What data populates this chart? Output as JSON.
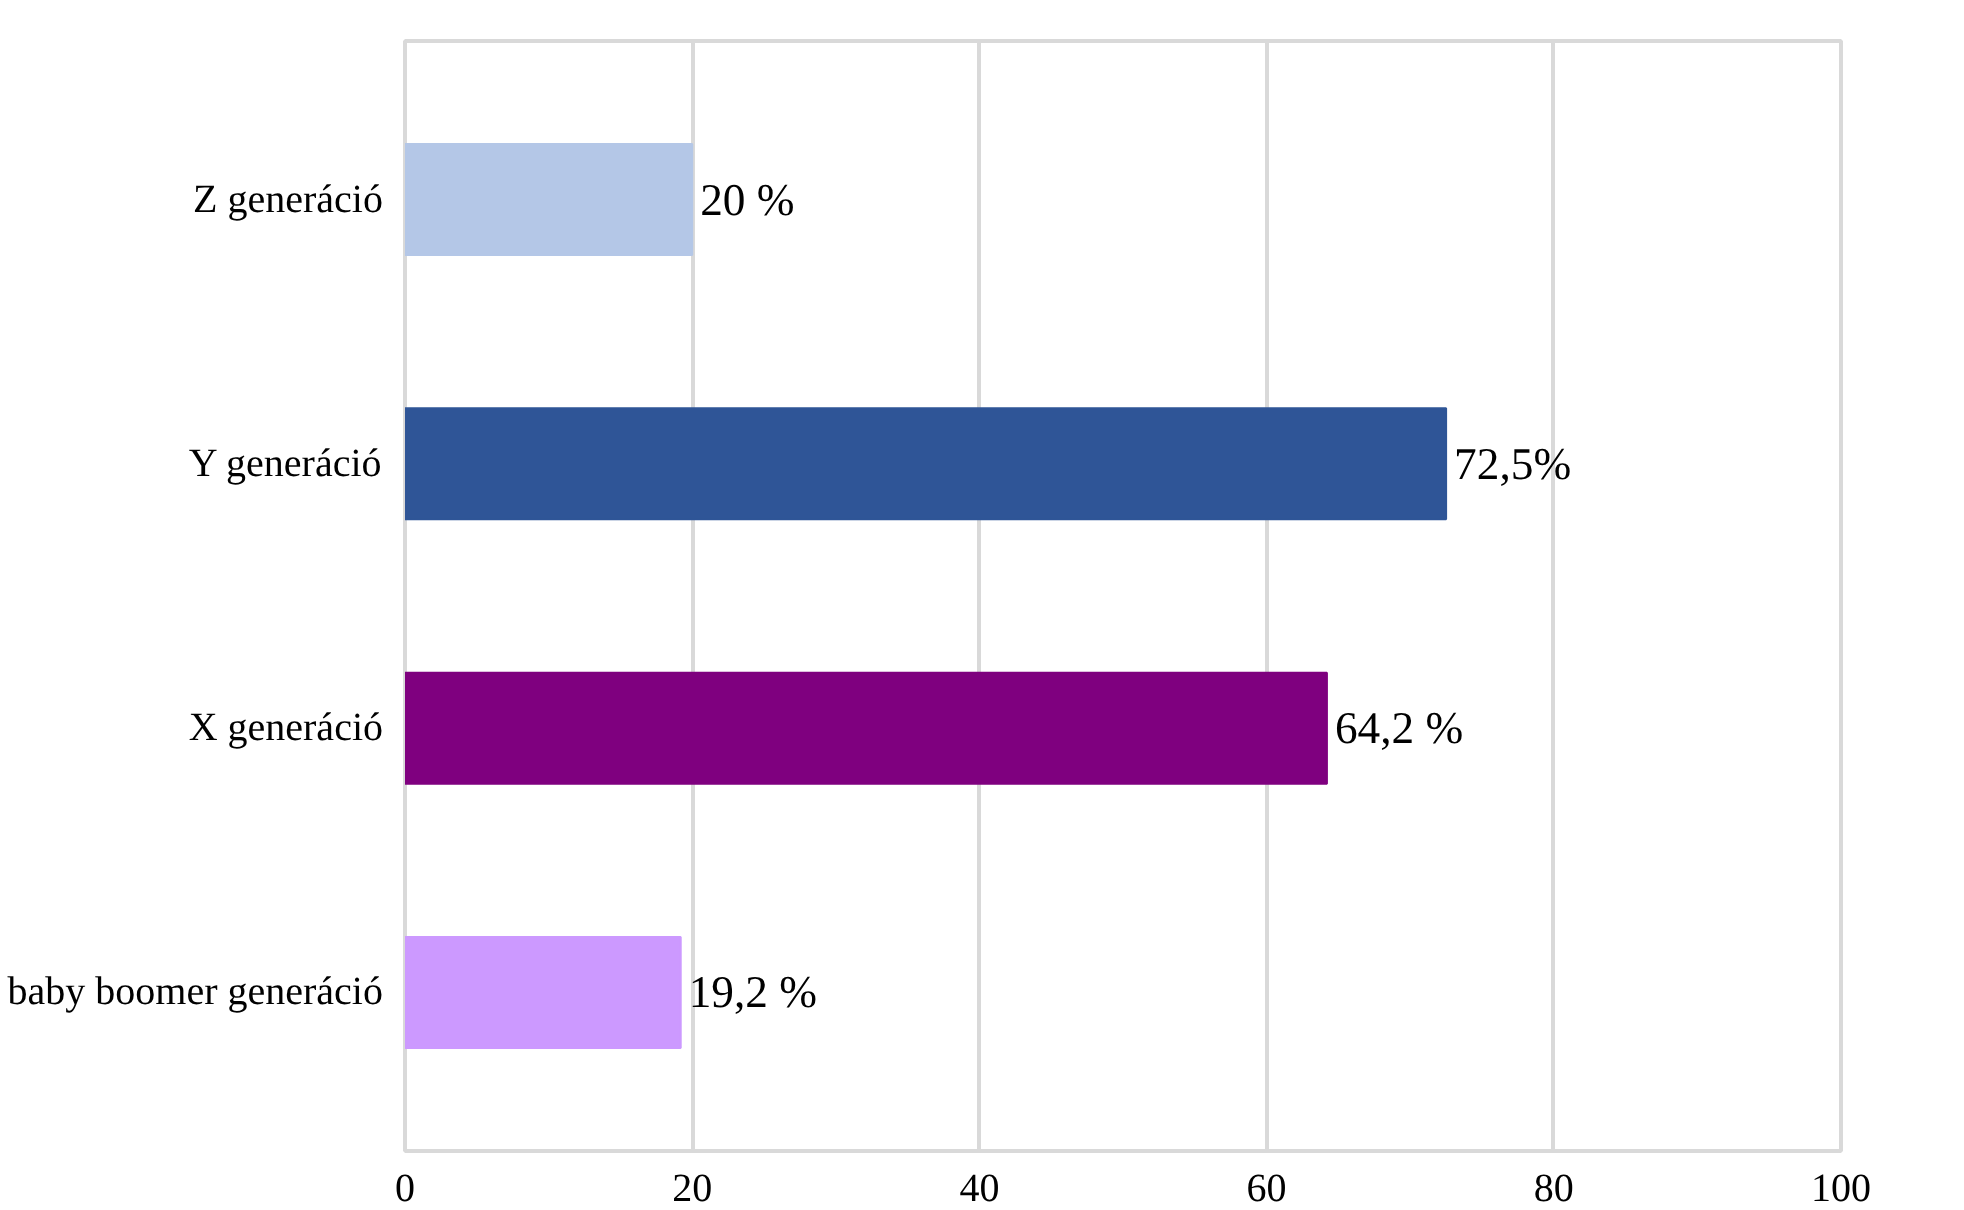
{
  "chart_data": {
    "type": "bar",
    "orientation": "horizontal",
    "categories": [
      "Z generáció",
      "Y generáció",
      "X generáció",
      "baby boomer generáció"
    ],
    "values": [
      20,
      72.5,
      64.2,
      19.2
    ],
    "colors": [
      "#b4c7e7",
      "#2f5597",
      "#7f007f",
      "#cc99ff"
    ],
    "value_labels": [
      "20 %",
      "72,5%",
      "64,2 %",
      "19,2 %"
    ],
    "xlim": [
      0,
      100
    ],
    "xticks": [
      0,
      20,
      40,
      60,
      80,
      100
    ],
    "grid": "x"
  }
}
